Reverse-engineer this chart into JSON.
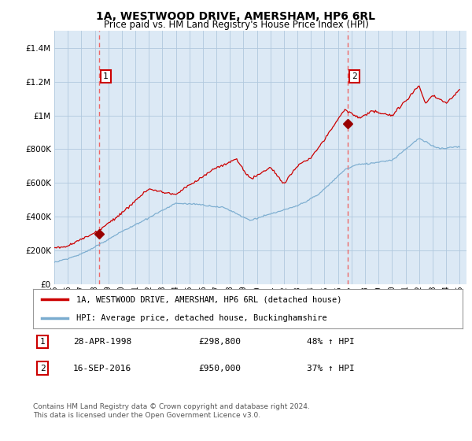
{
  "title": "1A, WESTWOOD DRIVE, AMERSHAM, HP6 6RL",
  "subtitle": "Price paid vs. HM Land Registry's House Price Index (HPI)",
  "xlim": [
    1995.0,
    2025.5
  ],
  "ylim": [
    0,
    1500000
  ],
  "yticks": [
    0,
    200000,
    400000,
    600000,
    800000,
    1000000,
    1200000,
    1400000
  ],
  "ytick_labels": [
    "£0",
    "£200K",
    "£400K",
    "£600K",
    "£800K",
    "£1M",
    "£1.2M",
    "£1.4M"
  ],
  "xticks": [
    1995,
    1996,
    1997,
    1998,
    1999,
    2000,
    2001,
    2002,
    2003,
    2004,
    2005,
    2006,
    2007,
    2008,
    2009,
    2010,
    2011,
    2012,
    2013,
    2014,
    2015,
    2016,
    2017,
    2018,
    2019,
    2020,
    2021,
    2022,
    2023,
    2024,
    2025
  ],
  "sale1_x": 1998.32,
  "sale1_y": 298800,
  "sale1_label": "1",
  "sale1_date": "28-APR-1998",
  "sale1_price": "£298,800",
  "sale1_hpi": "48% ↑ HPI",
  "sale2_x": 2016.71,
  "sale2_y": 950000,
  "sale2_label": "2",
  "sale2_date": "16-SEP-2016",
  "sale2_price": "£950,000",
  "sale2_hpi": "37% ↑ HPI",
  "red_line_color": "#cc0000",
  "blue_line_color": "#7aaccf",
  "sale_dot_color": "#990000",
  "vline_color": "#ee6666",
  "chart_bg_color": "#dce9f5",
  "legend_label_red": "1A, WESTWOOD DRIVE, AMERSHAM, HP6 6RL (detached house)",
  "legend_label_blue": "HPI: Average price, detached house, Buckinghamshire",
  "footer": "Contains HM Land Registry data © Crown copyright and database right 2024.\nThis data is licensed under the Open Government Licence v3.0.",
  "background_color": "#ffffff",
  "grid_color": "#b0c8de"
}
